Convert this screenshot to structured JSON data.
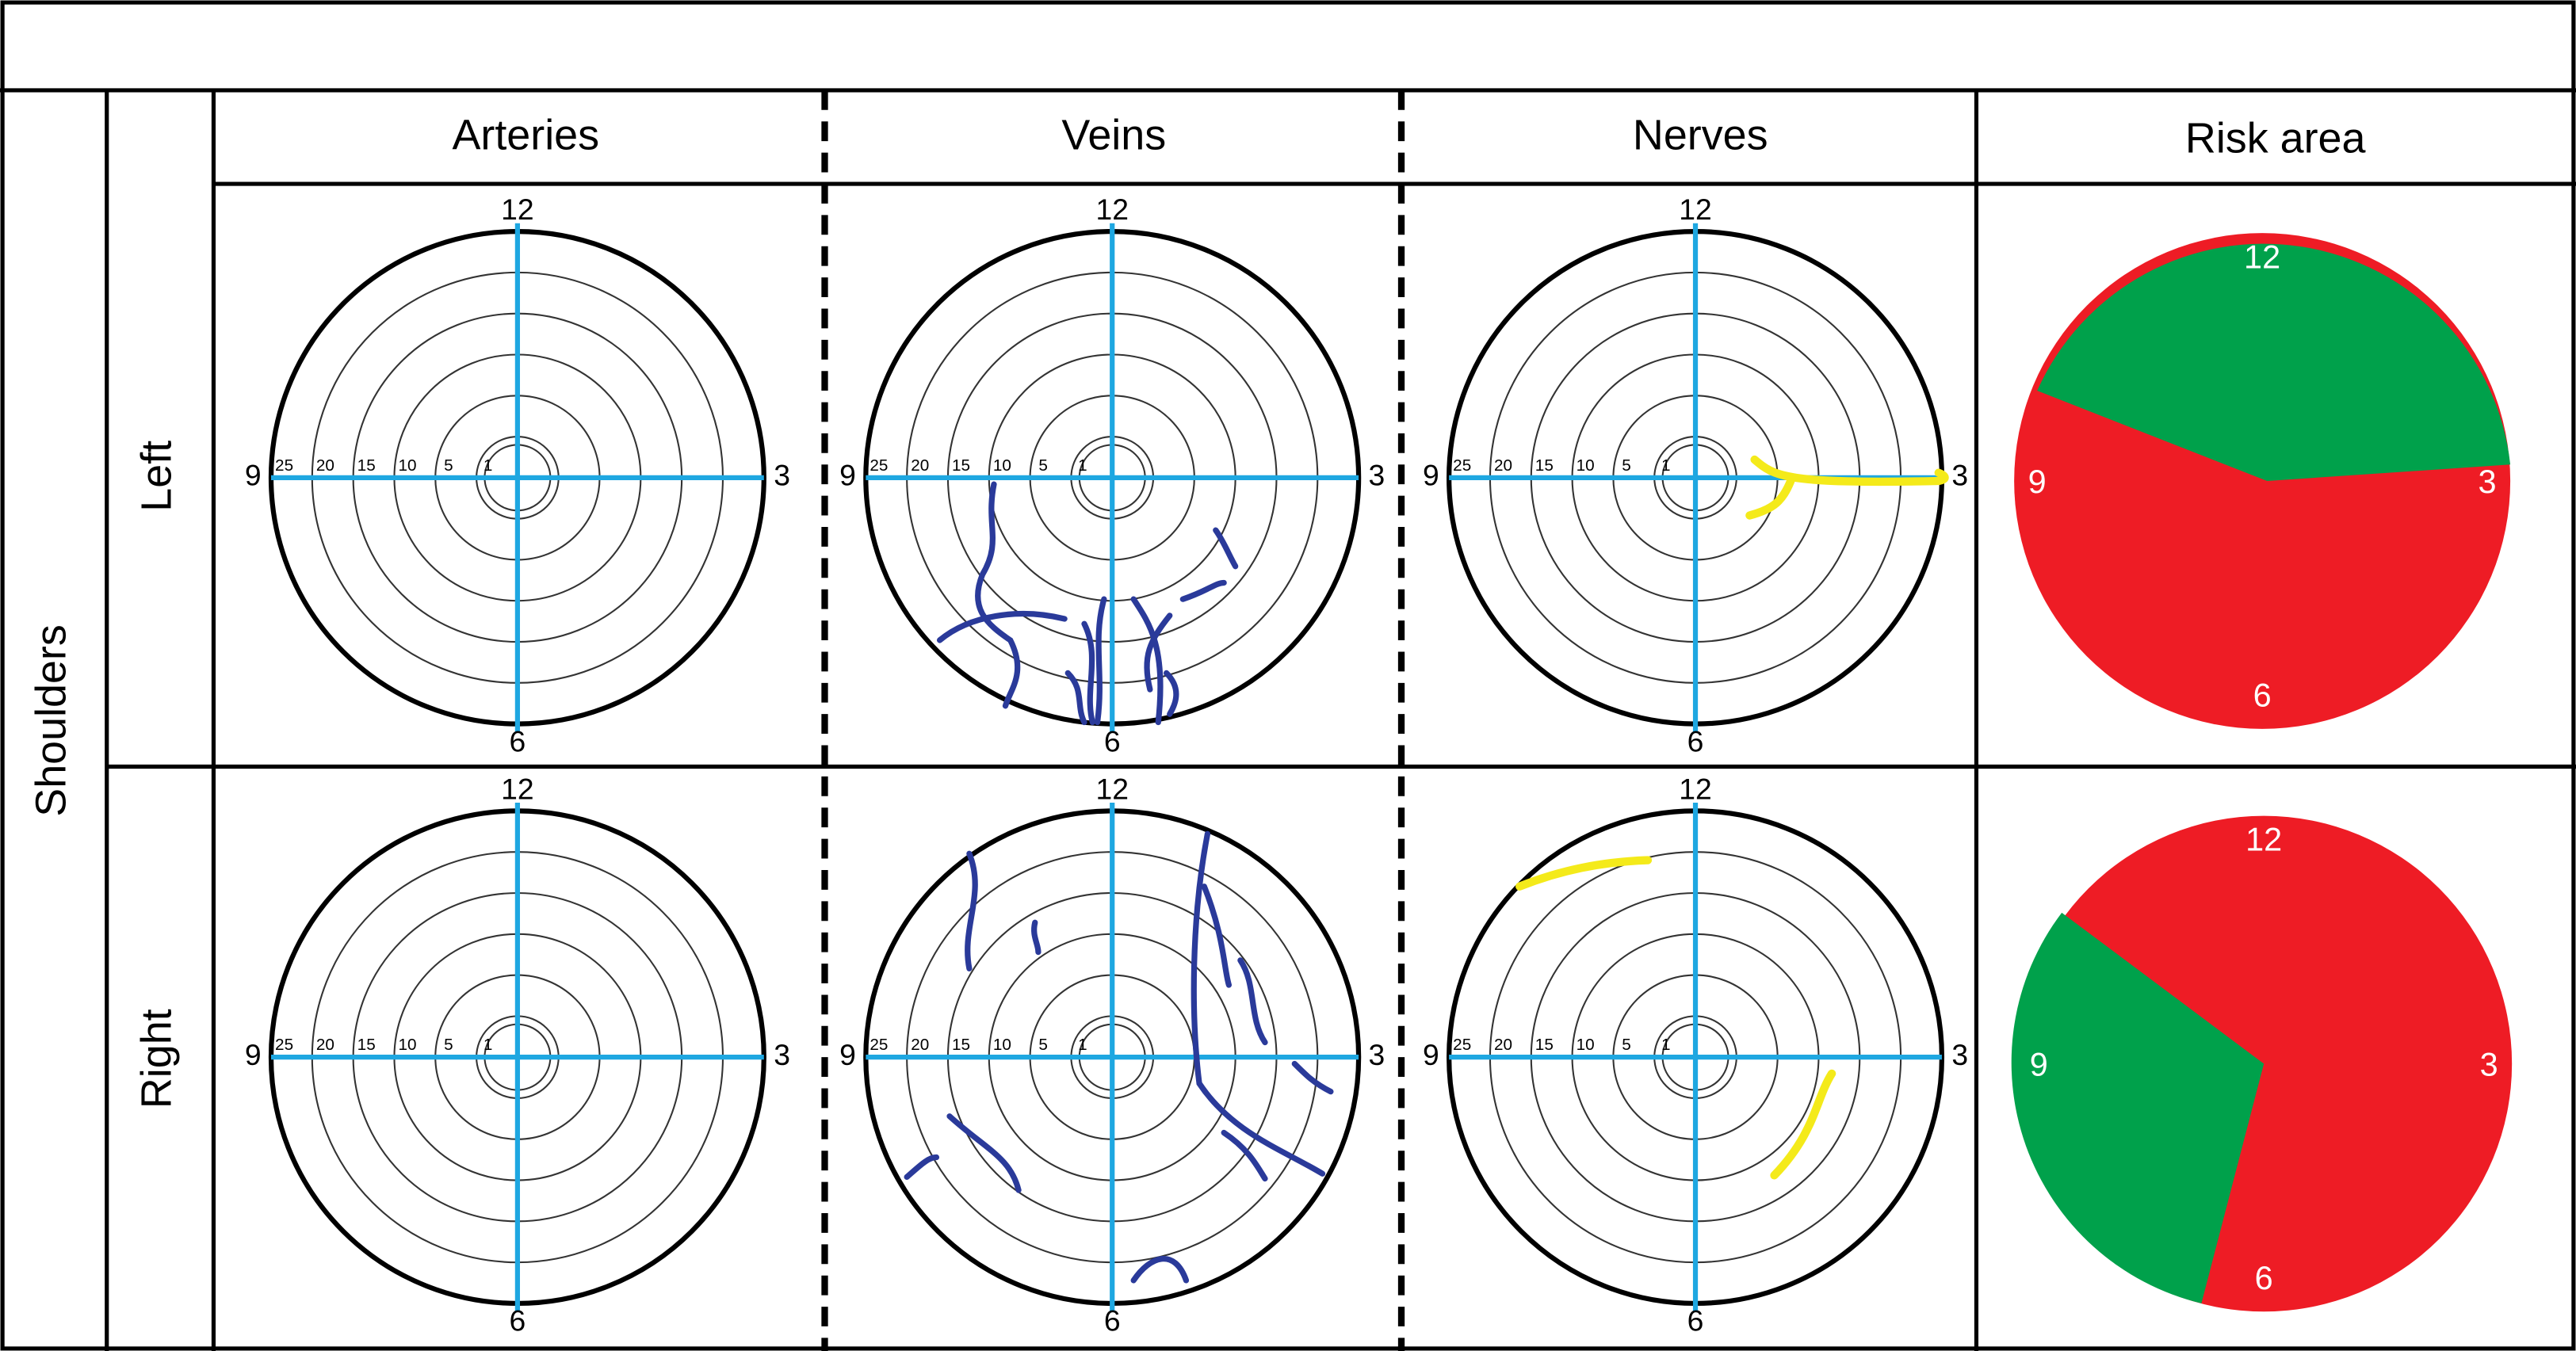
{
  "row_group": "Shoulders",
  "columns": [
    "Arteries",
    "Veins",
    "Nerves",
    "Risk area"
  ],
  "rows": [
    "Left",
    "Right"
  ],
  "clock_labels": {
    "top": "12",
    "right": "3",
    "bottom": "6",
    "left": "9"
  },
  "ring_labels": [
    "25",
    "20",
    "15",
    "10",
    "5",
    "1"
  ]
}
